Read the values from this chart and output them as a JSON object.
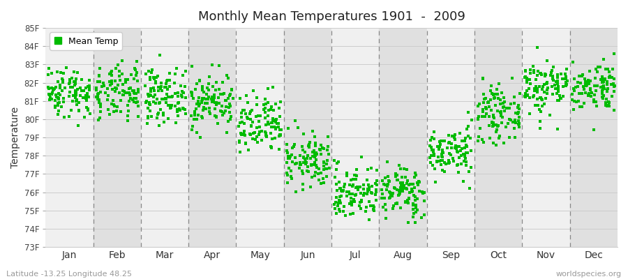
{
  "title": "Monthly Mean Temperatures 1901  -  2009",
  "ylabel": "Temperature",
  "months": [
    "Jan",
    "Feb",
    "Mar",
    "Apr",
    "May",
    "Jun",
    "Jul",
    "Aug",
    "Sep",
    "Oct",
    "Nov",
    "Dec"
  ],
  "ylim": [
    73,
    85
  ],
  "yticks": [
    73,
    74,
    75,
    76,
    77,
    78,
    79,
    80,
    81,
    82,
    83,
    84,
    85
  ],
  "ytick_labels": [
    "73F",
    "74F",
    "75F",
    "76F",
    "77F",
    "78F",
    "79F",
    "80F",
    "81F",
    "82F",
    "83F",
    "84F",
    "85F"
  ],
  "dot_color": "#00bb00",
  "bg_color": "#f0f0f0",
  "band_light": "#f0f0f0",
  "band_dark": "#e0e0e0",
  "legend_label": "Mean Temp",
  "footer_left": "Latitude -13.25 Longitude 48.25",
  "footer_right": "worldspecies.org",
  "n_years": 109,
  "monthly_means": [
    81.5,
    81.4,
    81.3,
    81.0,
    79.6,
    77.7,
    76.0,
    76.0,
    78.2,
    80.3,
    81.8,
    81.8
  ],
  "monthly_stds": [
    0.7,
    0.75,
    0.72,
    0.75,
    0.85,
    0.75,
    0.75,
    0.72,
    0.68,
    0.72,
    0.78,
    0.68
  ],
  "seed": 42
}
